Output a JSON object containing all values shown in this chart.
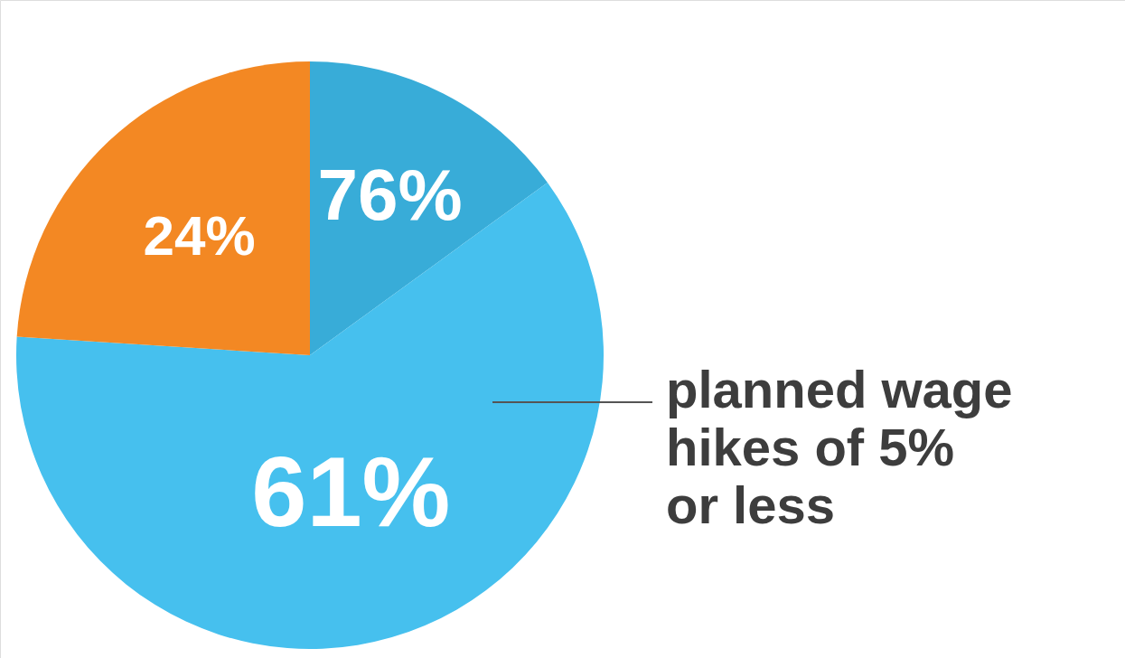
{
  "chart_data": {
    "type": "pie",
    "categories": [
      null,
      null,
      null
    ],
    "values": [
      15,
      61,
      24
    ],
    "colors": [
      "#38acd8",
      "#46c0ee",
      "#f38823"
    ],
    "value_labels": [
      null,
      "61%",
      "24%"
    ],
    "annotations": [
      "76%",
      {
        "text": "planned wage hikes of 5% or less"
      }
    ]
  }
}
